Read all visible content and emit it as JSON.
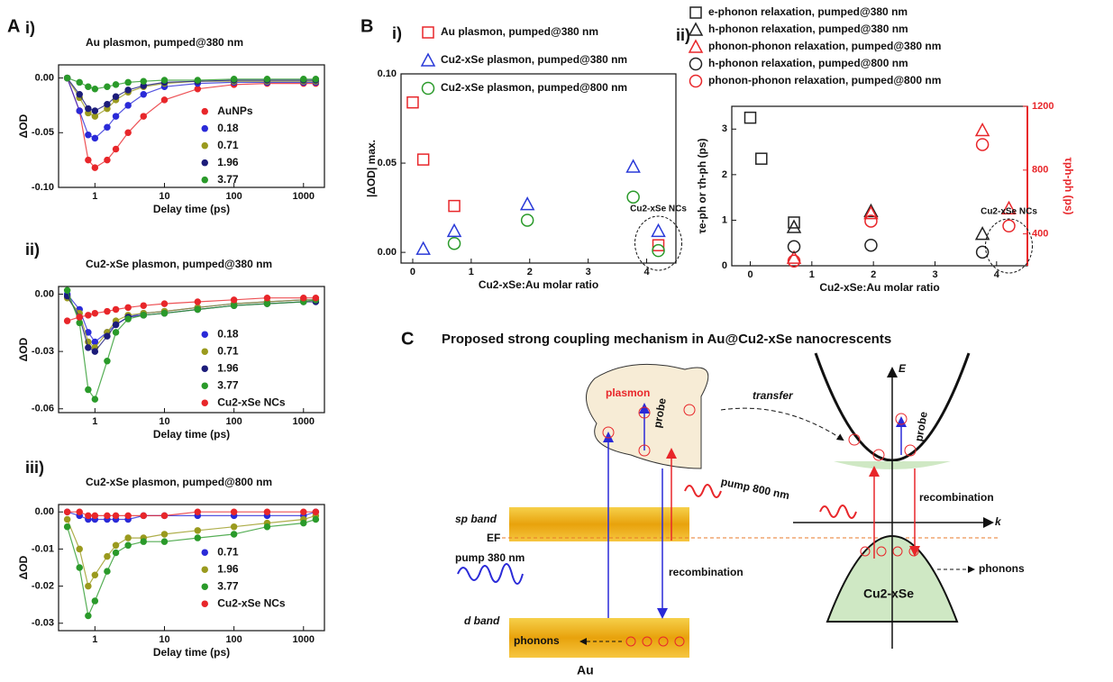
{
  "chart_data": [
    {
      "type": "line",
      "panel_letter": "A",
      "label": "i)",
      "title": "Au plasmon, pumped@380 nm",
      "xlabel": "Delay time (ps)",
      "ylabel": "ΔOD",
      "xscale": "log",
      "xlim": [
        0.3,
        2000
      ],
      "xticks": [
        1,
        10,
        100,
        1000
      ],
      "ylim": [
        -0.1,
        0.012
      ],
      "yticks": [
        {
          "value": 0,
          "label": "0.00"
        },
        {
          "value": -0.05,
          "label": "-0.05"
        },
        {
          "value": -0.1,
          "label": "-0.10"
        }
      ],
      "x": [
        0.4,
        0.6,
        0.8,
        1,
        1.5,
        2,
        3,
        5,
        10,
        30,
        100,
        300,
        1000,
        1500
      ],
      "series": [
        {
          "name": "AuNPs",
          "color": "#e8262a",
          "values": [
            0,
            -0.03,
            -0.075,
            -0.082,
            -0.075,
            -0.065,
            -0.05,
            -0.035,
            -0.02,
            -0.01,
            -0.006,
            -0.005,
            -0.005,
            -0.005
          ]
        },
        {
          "name": "0.18",
          "color": "#2a2ad8",
          "values": [
            0,
            -0.03,
            -0.052,
            -0.055,
            -0.045,
            -0.035,
            -0.025,
            -0.015,
            -0.008,
            -0.005,
            -0.004,
            -0.004,
            -0.004,
            -0.004
          ]
        },
        {
          "name": "0.71",
          "color": "#9a9a1e",
          "values": [
            0,
            -0.018,
            -0.032,
            -0.035,
            -0.028,
            -0.02,
            -0.013,
            -0.008,
            -0.005,
            -0.003,
            -0.003,
            -0.003,
            -0.003,
            -0.003
          ]
        },
        {
          "name": "1.96",
          "color": "#1c1c7a",
          "values": [
            0,
            -0.015,
            -0.028,
            -0.03,
            -0.024,
            -0.017,
            -0.011,
            -0.007,
            -0.004,
            -0.003,
            -0.002,
            -0.002,
            -0.002,
            -0.002
          ]
        },
        {
          "name": "3.77",
          "color": "#2a9a2a",
          "values": [
            0,
            -0.004,
            -0.008,
            -0.01,
            -0.008,
            -0.006,
            -0.004,
            -0.003,
            -0.002,
            -0.002,
            -0.001,
            -0.001,
            -0.001,
            -0.001
          ]
        }
      ]
    },
    {
      "type": "line",
      "label": "ii)",
      "title": "Cu2-xSe plasmon, pumped@380 nm",
      "xlabel": "Delay time (ps)",
      "ylabel": "ΔOD",
      "xscale": "log",
      "xlim": [
        0.3,
        2000
      ],
      "xticks": [
        1,
        10,
        100,
        1000
      ],
      "ylim": [
        -0.062,
        0.004
      ],
      "yticks": [
        {
          "value": 0,
          "label": "0.00"
        },
        {
          "value": -0.03,
          "label": "-0.03"
        },
        {
          "value": -0.06,
          "label": "-0.06"
        }
      ],
      "x": [
        0.4,
        0.6,
        0.8,
        1,
        1.5,
        2,
        3,
        5,
        10,
        30,
        100,
        300,
        1000,
        1500
      ],
      "series": [
        {
          "name": "0.18",
          "color": "#2a2ad8",
          "values": [
            0,
            -0.008,
            -0.02,
            -0.025,
            -0.02,
            -0.016,
            -0.012,
            -0.01,
            -0.009,
            -0.007,
            -0.005,
            -0.004,
            -0.003,
            -0.003
          ]
        },
        {
          "name": "0.71",
          "color": "#9a9a1e",
          "values": [
            -0.002,
            -0.01,
            -0.025,
            -0.028,
            -0.02,
            -0.014,
            -0.011,
            -0.01,
            -0.009,
            -0.007,
            -0.005,
            -0.004,
            -0.003,
            -0.003
          ]
        },
        {
          "name": "1.96",
          "color": "#1c1c7a",
          "values": [
            -0.001,
            -0.012,
            -0.028,
            -0.03,
            -0.022,
            -0.016,
            -0.012,
            -0.011,
            -0.01,
            -0.008,
            -0.006,
            -0.005,
            -0.004,
            -0.004
          ]
        },
        {
          "name": "3.77",
          "color": "#2a9a2a",
          "values": [
            0.002,
            -0.015,
            -0.05,
            -0.055,
            -0.035,
            -0.02,
            -0.013,
            -0.011,
            -0.01,
            -0.008,
            -0.006,
            -0.005,
            -0.004,
            -0.003
          ]
        },
        {
          "name": "Cu2-xSe NCs",
          "color": "#e8262a",
          "values": [
            -0.014,
            -0.012,
            -0.011,
            -0.01,
            -0.009,
            -0.008,
            -0.007,
            -0.006,
            -0.005,
            -0.004,
            -0.003,
            -0.002,
            -0.002,
            -0.002
          ]
        }
      ]
    },
    {
      "type": "line",
      "label": "iii)",
      "title": "Cu2-xSe plasmon, pumped@800 nm",
      "xlabel": "Delay time (ps)",
      "ylabel": "ΔOD",
      "xscale": "log",
      "xlim": [
        0.3,
        2000
      ],
      "xticks": [
        1,
        10,
        100,
        1000
      ],
      "ylim": [
        -0.032,
        0.002
      ],
      "yticks": [
        {
          "value": 0,
          "label": "0.00"
        },
        {
          "value": -0.01,
          "label": "-0.01"
        },
        {
          "value": -0.02,
          "label": "-0.02"
        },
        {
          "value": -0.03,
          "label": "-0.03"
        }
      ],
      "x": [
        0.4,
        0.6,
        0.8,
        1,
        1.5,
        2,
        3,
        5,
        10,
        30,
        100,
        300,
        1000,
        1500
      ],
      "series": [
        {
          "name": "0.71",
          "color": "#2a2ad8",
          "values": [
            0,
            -0.001,
            -0.002,
            -0.002,
            -0.002,
            -0.002,
            -0.002,
            -0.001,
            -0.001,
            -0.001,
            -0.001,
            -0.001,
            -0.001,
            0
          ]
        },
        {
          "name": "1.96",
          "color": "#9a9a1e",
          "values": [
            -0.002,
            -0.01,
            -0.02,
            -0.017,
            -0.012,
            -0.009,
            -0.007,
            -0.007,
            -0.006,
            -0.005,
            -0.004,
            -0.003,
            -0.002,
            -0.001
          ]
        },
        {
          "name": "3.77",
          "color": "#2a9a2a",
          "values": [
            -0.004,
            -0.015,
            -0.028,
            -0.024,
            -0.016,
            -0.011,
            -0.009,
            -0.008,
            -0.008,
            -0.007,
            -0.006,
            -0.004,
            -0.003,
            -0.002
          ]
        },
        {
          "name": "Cu2-xSe NCs",
          "color": "#e8262a",
          "values": [
            0,
            0,
            -0.001,
            -0.001,
            -0.001,
            -0.001,
            -0.001,
            -0.001,
            -0.001,
            0,
            0,
            0,
            0,
            0
          ]
        }
      ]
    },
    {
      "type": "scatter",
      "panel_letter": "B",
      "label": "i)",
      "xlabel": "Cu2-xSe:Au molar ratio",
      "ylabel": "|ΔOD| max.",
      "annotation": "Cu2-xSe NCs",
      "xlim": [
        -0.2,
        4.5
      ],
      "xticks": [
        0,
        1,
        2,
        3,
        4
      ],
      "ylim": [
        -0.006,
        0.1
      ],
      "yticks": [
        {
          "value": 0,
          "label": "0.00"
        },
        {
          "value": 0.05,
          "label": "0.05"
        },
        {
          "value": 0.1,
          "label": "0.10"
        }
      ],
      "series": [
        {
          "name": "Au plasmon, pumped@380 nm",
          "color": "#e8262a",
          "marker": "square",
          "x": [
            0,
            0.18,
            0.71,
            4.2
          ],
          "values": [
            0.084,
            0.052,
            0.026,
            0.004
          ]
        },
        {
          "name": "Cu2-xSe plasmon, pumped@380 nm",
          "color": "#2a3ad8",
          "marker": "triangle",
          "x": [
            0.18,
            0.71,
            1.96,
            3.77,
            4.2
          ],
          "values": [
            0.002,
            0.012,
            0.027,
            0.048,
            0.012
          ]
        },
        {
          "name": "Cu2-xSe plasmon, pumped@800 nm",
          "color": "#2a9a2a",
          "marker": "circle",
          "x": [
            0.71,
            1.96,
            3.77,
            4.2
          ],
          "values": [
            0.005,
            0.018,
            0.031,
            0.001
          ]
        }
      ]
    },
    {
      "type": "scatter",
      "label": "ii)",
      "xlabel": "Cu2-xSe:Au molar ratio",
      "ylabel": "τe-ph or τh-ph (ps)",
      "y2label": "τph-ph (ps)",
      "annotation": "Cu2-xSe NCs",
      "xlim": [
        -0.3,
        4.5
      ],
      "xticks": [
        0,
        1,
        2,
        3,
        4
      ],
      "ylim": [
        0,
        3.5
      ],
      "yticks": [
        0,
        1,
        2,
        3
      ],
      "y2lim": [
        200,
        1200
      ],
      "y2ticks": [
        400,
        800,
        1200
      ],
      "y2color": "#e8262a",
      "series": [
        {
          "name": "e-phonon relaxation, pumped@380 nm",
          "color": "#222222",
          "marker": "square",
          "x": [
            0,
            0.18,
            0.71
          ],
          "values": [
            3.25,
            2.35,
            0.95
          ]
        },
        {
          "name": "h-phonon relaxation, pumped@380 nm",
          "color": "#222222",
          "marker": "triangle",
          "x": [
            0.71,
            1.96,
            3.77
          ],
          "values": [
            0.85,
            1.2,
            0.7
          ]
        },
        {
          "name": "phonon-phonon relaxation, pumped@380 nm",
          "color": "#e8262a",
          "marker": "triangle",
          "axis": "y2",
          "x": [
            0.71,
            1.96,
            3.77,
            4.2
          ],
          "values": [
            250,
            530,
            1050,
            560
          ]
        },
        {
          "name": "h-phonon relaxation, pumped@800 nm",
          "color": "#222222",
          "marker": "circle",
          "x": [
            0.71,
            1.96,
            3.77
          ],
          "values": [
            0.42,
            0.45,
            0.3
          ]
        },
        {
          "name": "phonon-phonon relaxation, pumped@800 nm",
          "color": "#e8262a",
          "marker": "circle",
          "axis": "y2",
          "x": [
            0.71,
            1.96,
            3.77,
            4.2
          ],
          "values": [
            230,
            480,
            960,
            450
          ]
        }
      ]
    }
  ],
  "diagram": {
    "label": "C",
    "title": "Proposed strong coupling mechanism in Au@Cu2-xSe nanocrescents",
    "plasmon": "plasmon",
    "probe_au": "probe",
    "transfer": "transfer",
    "pump_800": "pump 800 nm",
    "sp_band": "sp band",
    "fermi": "EF",
    "pump_380": "pump 380 nm",
    "recombination_au": "recombination",
    "d_band": "d band",
    "phonons_au": "phonons",
    "au": "Au",
    "energy": "E",
    "probe_cu": "probe",
    "recombination_cu": "recombination",
    "k": "k",
    "phonons_cu": "phonons",
    "cu": "Cu2-xSe"
  }
}
